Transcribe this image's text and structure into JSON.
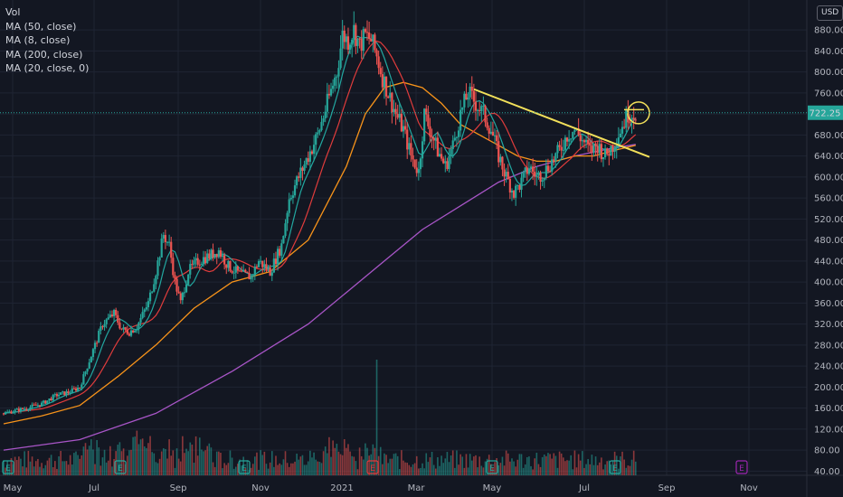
{
  "legend": {
    "vol": "Vol",
    "ma1": "MA (50, close)",
    "ma2": "MA (8, close)",
    "ma3": "MA (200, close)",
    "ma4": "MA (20, close, 0)"
  },
  "currency": "USD",
  "colors": {
    "background": "#131722",
    "grid": "#1f2433",
    "up": "#26a69a",
    "down": "#ef5350",
    "ma50": "#f7931a",
    "ma8": "#22a7a0",
    "ma200": "#a855c7",
    "ma20": "#e03c3c",
    "trendline": "#f2e05a",
    "last_price_tag": "#26a69a",
    "earnings_badge": "#26a69a",
    "earnings_badge_red": "#e03c3c",
    "earnings_badge_future": "#9c27b0"
  },
  "chart_data": {
    "type": "candlestick",
    "y_axis_ticks": [
      40,
      80,
      120,
      160,
      200,
      240,
      280,
      320,
      360,
      400,
      440,
      480,
      520,
      560,
      600,
      640,
      680,
      720,
      760,
      800,
      840,
      880
    ],
    "y_axis_labels": [
      "40.00",
      "80.00",
      "120.00",
      "160.00",
      "200.00",
      "240.00",
      "280.00",
      "320.00",
      "360.00",
      "400.00",
      "440.00",
      "480.00",
      "520.00",
      "560.00",
      "600.00",
      "640.00",
      "680.00",
      "720.00",
      "760.00",
      "800.00",
      "840.00",
      "880.00"
    ],
    "ylim": [
      32,
      930
    ],
    "x_axis_labels": [
      "May",
      "Jul",
      "Sep",
      "Nov",
      "2021",
      "Mar",
      "May",
      "Jul",
      "Sep",
      "Nov"
    ],
    "last_price": "722.25",
    "price_path": [
      [
        0,
        150
      ],
      [
        6,
        155
      ],
      [
        12,
        160
      ],
      [
        20,
        168
      ],
      [
        28,
        185
      ],
      [
        34,
        190
      ],
      [
        40,
        200
      ],
      [
        46,
        260
      ],
      [
        52,
        320
      ],
      [
        58,
        340
      ],
      [
        62,
        310
      ],
      [
        66,
        305
      ],
      [
        70,
        315
      ],
      [
        76,
        360
      ],
      [
        80,
        420
      ],
      [
        84,
        490
      ],
      [
        87,
        470
      ],
      [
        90,
        400
      ],
      [
        93,
        360
      ],
      [
        97,
        420
      ],
      [
        102,
        440
      ],
      [
        108,
        450
      ],
      [
        113,
        460
      ],
      [
        118,
        430
      ],
      [
        124,
        415
      ],
      [
        130,
        410
      ],
      [
        134,
        440
      ],
      [
        140,
        420
      ],
      [
        146,
        470
      ],
      [
        150,
        560
      ],
      [
        155,
        600
      ],
      [
        160,
        640
      ],
      [
        165,
        680
      ],
      [
        170,
        740
      ],
      [
        175,
        800
      ],
      [
        178,
        870
      ],
      [
        181,
        860
      ],
      [
        184,
        880
      ],
      [
        187,
        850
      ],
      [
        190,
        870
      ],
      [
        193,
        860
      ],
      [
        196,
        830
      ],
      [
        199,
        790
      ],
      [
        202,
        760
      ],
      [
        206,
        720
      ],
      [
        210,
        690
      ],
      [
        214,
        640
      ],
      [
        218,
        610
      ],
      [
        221,
        720
      ],
      [
        224,
        690
      ],
      [
        228,
        650
      ],
      [
        232,
        620
      ],
      [
        236,
        660
      ],
      [
        240,
        720
      ],
      [
        244,
        760
      ],
      [
        248,
        740
      ],
      [
        252,
        720
      ],
      [
        256,
        690
      ],
      [
        260,
        640
      ],
      [
        264,
        600
      ],
      [
        268,
        570
      ],
      [
        272,
        590
      ],
      [
        276,
        620
      ],
      [
        280,
        600
      ],
      [
        284,
        610
      ],
      [
        288,
        630
      ],
      [
        292,
        650
      ],
      [
        296,
        680
      ],
      [
        300,
        690
      ],
      [
        304,
        670
      ],
      [
        308,
        650
      ],
      [
        312,
        660
      ],
      [
        316,
        640
      ],
      [
        320,
        660
      ],
      [
        324,
        690
      ],
      [
        328,
        720
      ],
      [
        332,
        722
      ]
    ],
    "ma50": [
      [
        0,
        130
      ],
      [
        20,
        145
      ],
      [
        40,
        165
      ],
      [
        60,
        220
      ],
      [
        80,
        280
      ],
      [
        100,
        350
      ],
      [
        120,
        400
      ],
      [
        140,
        420
      ],
      [
        160,
        480
      ],
      [
        180,
        620
      ],
      [
        190,
        720
      ],
      [
        200,
        770
      ],
      [
        210,
        780
      ],
      [
        220,
        770
      ],
      [
        230,
        740
      ],
      [
        240,
        700
      ],
      [
        250,
        680
      ],
      [
        260,
        660
      ],
      [
        270,
        640
      ],
      [
        280,
        630
      ],
      [
        290,
        630
      ],
      [
        300,
        640
      ],
      [
        310,
        640
      ],
      [
        320,
        650
      ],
      [
        332,
        660
      ]
    ],
    "ma200": [
      [
        0,
        80
      ],
      [
        40,
        100
      ],
      [
        80,
        150
      ],
      [
        120,
        230
      ],
      [
        160,
        320
      ],
      [
        180,
        380
      ],
      [
        200,
        440
      ],
      [
        220,
        500
      ],
      [
        240,
        545
      ],
      [
        260,
        590
      ],
      [
        280,
        620
      ],
      [
        300,
        640
      ],
      [
        320,
        655
      ],
      [
        332,
        662
      ]
    ],
    "volume": "relative bars along bottom"
  },
  "trendline": {
    "from": [
      "Apr 2021",
      765
    ],
    "to": [
      "Aug 2021",
      640
    ]
  },
  "earnings_markers": [
    "E",
    "E",
    "E",
    "E",
    "E",
    "E",
    "E",
    "E",
    "E",
    "E"
  ]
}
